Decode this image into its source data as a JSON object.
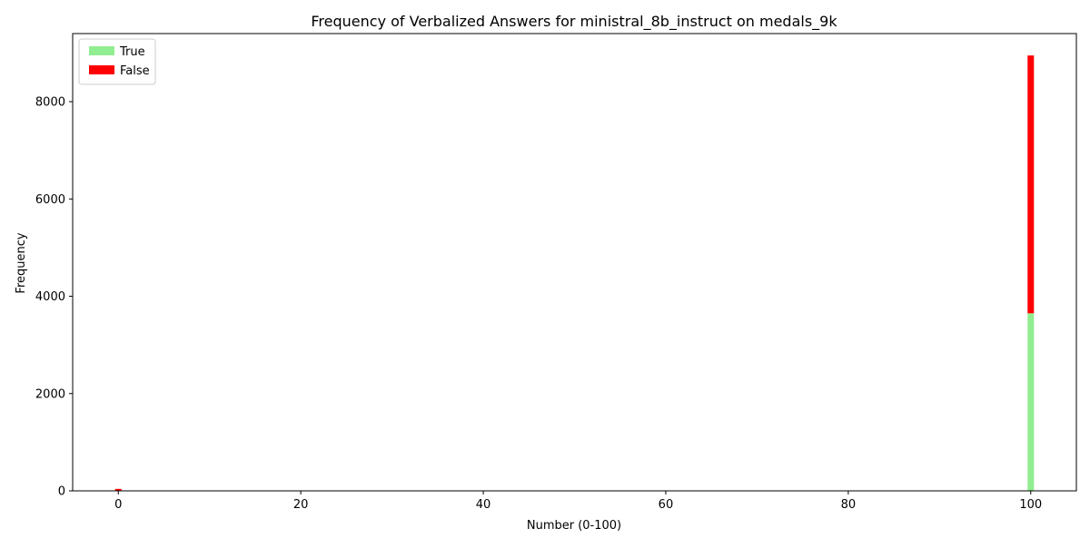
{
  "chart_data": {
    "type": "bar",
    "stacked": true,
    "title": "Frequency of Verbalized Answers for ministral_8b_instruct on medals_9k",
    "xlabel": "Number (0-100)",
    "ylabel": "Frequency",
    "xlim": [
      -5,
      105
    ],
    "ylim": [
      0,
      9400
    ],
    "xticks": [
      0,
      20,
      40,
      60,
      80,
      100
    ],
    "yticks": [
      0,
      2000,
      4000,
      6000,
      8000
    ],
    "x": [
      0,
      100
    ],
    "series": [
      {
        "name": "True",
        "color": "#90ee90",
        "values": [
          0,
          3650
        ]
      },
      {
        "name": "False",
        "color": "#ff0000",
        "values": [
          40,
          5300
        ]
      }
    ],
    "legend": {
      "position": "top-left"
    },
    "grid": false
  }
}
